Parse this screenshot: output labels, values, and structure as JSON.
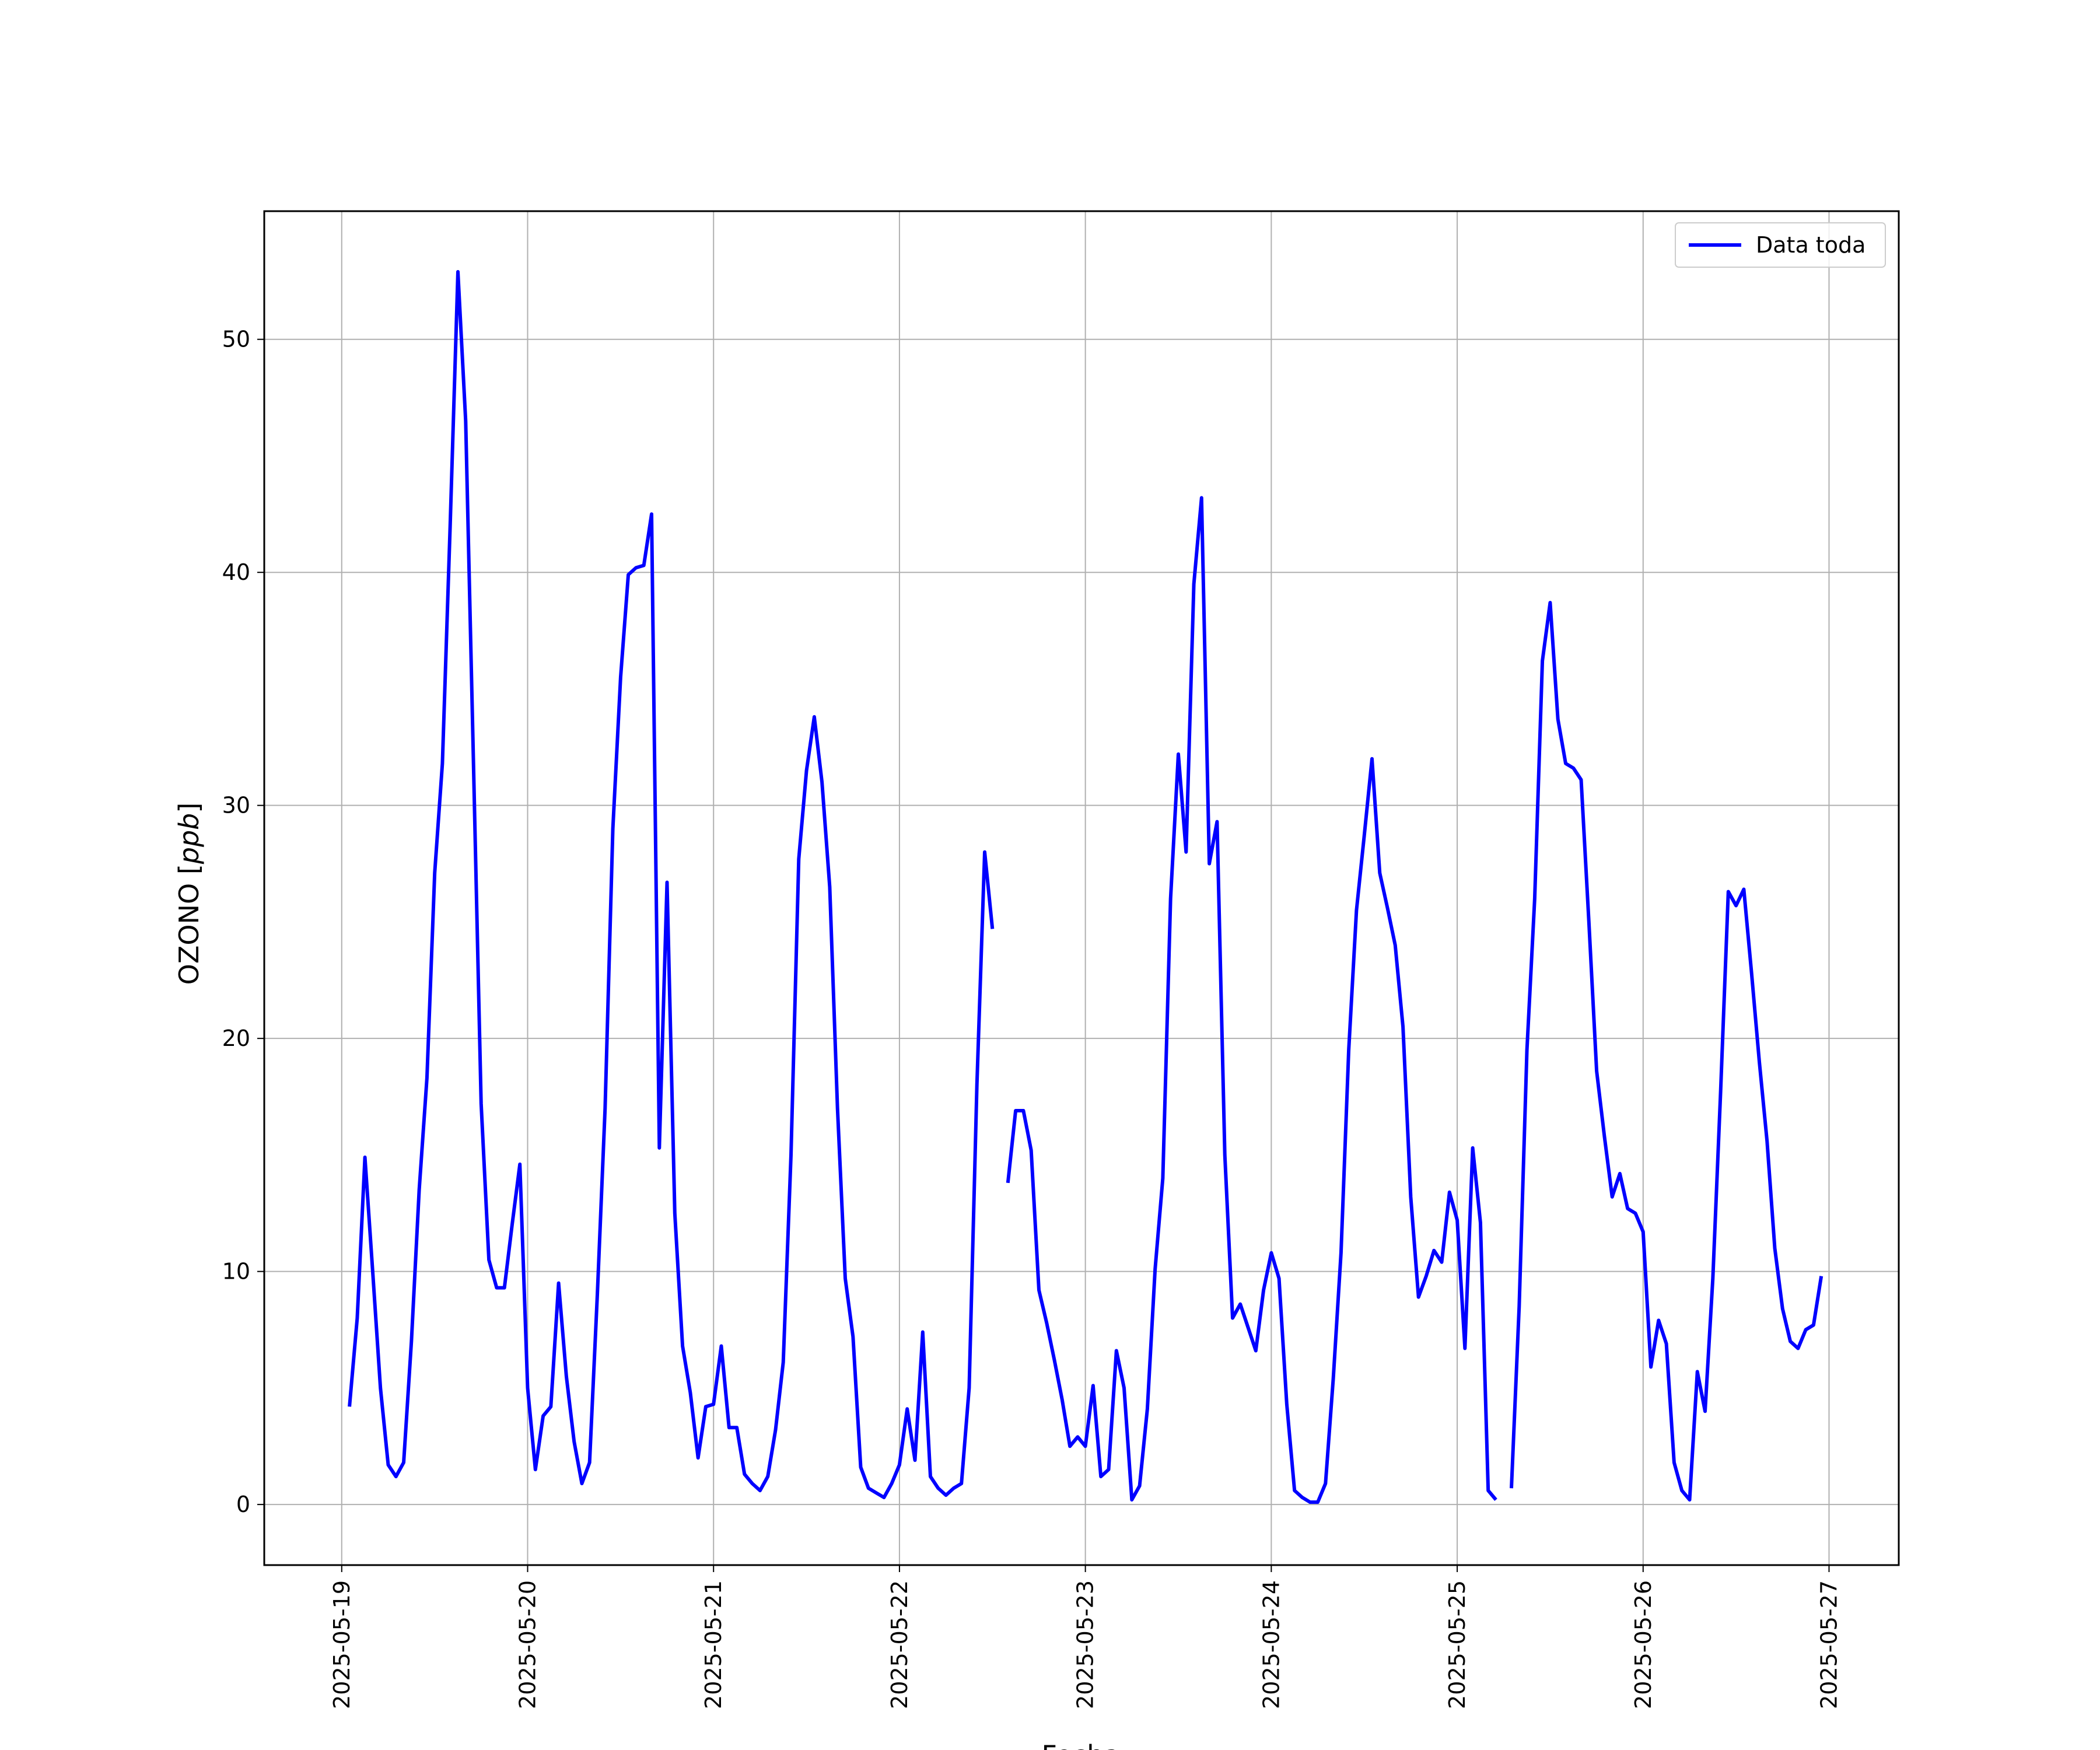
{
  "chart_data": {
    "type": "line",
    "xlabel": "Fecha",
    "ylabel": "OZONO [ppb]",
    "ylabel_plain": "OZONO [",
    "ylabel_italic": "ppb",
    "ylabel_close": "]",
    "xlim": [
      "2025-05-18T14:00",
      "2025-05-27T09:00"
    ],
    "ylim": [
      -2.6,
      55.5
    ],
    "yticks": [
      0,
      10,
      20,
      30,
      40,
      50
    ],
    "xticks": [
      "2025-05-19",
      "2025-05-20",
      "2025-05-21",
      "2025-05-22",
      "2025-05-23",
      "2025-05-24",
      "2025-05-25",
      "2025-05-26",
      "2025-05-27"
    ],
    "grid": true,
    "legend_position": "top-right",
    "series": [
      {
        "name": "Data toda",
        "color": "#0000ff",
        "segments": [
          [
            [
              "2025-05-19T01:00",
              4.2
            ],
            [
              "2025-05-19T02:00",
              8.0
            ],
            [
              "2025-05-19T03:00",
              14.9
            ],
            [
              "2025-05-19T04:00",
              10.0
            ],
            [
              "2025-05-19T05:00",
              5.0
            ],
            [
              "2025-05-19T06:00",
              1.7
            ],
            [
              "2025-05-19T07:00",
              1.2
            ],
            [
              "2025-05-19T08:00",
              1.8
            ],
            [
              "2025-05-19T09:00",
              7.0
            ],
            [
              "2025-05-19T10:00",
              13.5
            ],
            [
              "2025-05-19T11:00",
              18.3
            ],
            [
              "2025-05-19T12:00",
              27.1
            ],
            [
              "2025-05-19T13:00",
              31.8
            ],
            [
              "2025-05-19T14:00",
              42.0
            ],
            [
              "2025-05-19T15:00",
              52.9
            ],
            [
              "2025-05-19T16:00",
              46.5
            ],
            [
              "2025-05-19T17:00",
              32.0
            ],
            [
              "2025-05-19T18:00",
              17.2
            ],
            [
              "2025-05-19T19:00",
              10.5
            ],
            [
              "2025-05-19T20:00",
              9.3
            ],
            [
              "2025-05-19T21:00",
              9.3
            ],
            [
              "2025-05-19T22:00",
              12.0
            ],
            [
              "2025-05-19T23:00",
              14.6
            ],
            [
              "2025-05-20T00:00",
              5.0
            ],
            [
              "2025-05-20T01:00",
              1.5
            ],
            [
              "2025-05-20T02:00",
              3.8
            ],
            [
              "2025-05-20T03:00",
              4.2
            ],
            [
              "2025-05-20T04:00",
              9.5
            ],
            [
              "2025-05-20T05:00",
              5.5
            ],
            [
              "2025-05-20T06:00",
              2.7
            ],
            [
              "2025-05-20T07:00",
              0.9
            ],
            [
              "2025-05-20T08:00",
              1.8
            ],
            [
              "2025-05-20T09:00",
              9.0
            ],
            [
              "2025-05-20T10:00",
              17.0
            ],
            [
              "2025-05-20T11:00",
              29.0
            ],
            [
              "2025-05-20T12:00",
              35.5
            ],
            [
              "2025-05-20T13:00",
              39.9
            ],
            [
              "2025-05-20T14:00",
              40.2
            ],
            [
              "2025-05-20T15:00",
              40.3
            ],
            [
              "2025-05-20T16:00",
              42.5
            ],
            [
              "2025-05-20T17:00",
              15.3
            ],
            [
              "2025-05-20T18:00",
              26.7
            ],
            [
              "2025-05-20T19:00",
              12.5
            ],
            [
              "2025-05-20T20:00",
              6.8
            ],
            [
              "2025-05-20T21:00",
              4.8
            ],
            [
              "2025-05-20T22:00",
              2.0
            ],
            [
              "2025-05-20T23:00",
              4.2
            ],
            [
              "2025-05-21T00:00",
              4.3
            ],
            [
              "2025-05-21T01:00",
              6.8
            ],
            [
              "2025-05-21T02:00",
              3.3
            ],
            [
              "2025-05-21T03:00",
              3.3
            ],
            [
              "2025-05-21T04:00",
              1.3
            ],
            [
              "2025-05-21T05:00",
              0.9
            ],
            [
              "2025-05-21T06:00",
              0.6
            ],
            [
              "2025-05-21T07:00",
              1.2
            ],
            [
              "2025-05-21T08:00",
              3.2
            ],
            [
              "2025-05-21T09:00",
              6.1
            ],
            [
              "2025-05-21T10:00",
              15.0
            ],
            [
              "2025-05-21T11:00",
              27.7
            ],
            [
              "2025-05-21T12:00",
              31.5
            ],
            [
              "2025-05-21T13:00",
              33.8
            ],
            [
              "2025-05-21T14:00",
              31.0
            ],
            [
              "2025-05-21T15:00",
              26.5
            ],
            [
              "2025-05-21T16:00",
              17.0
            ],
            [
              "2025-05-21T17:00",
              9.7
            ],
            [
              "2025-05-21T18:00",
              7.2
            ],
            [
              "2025-05-21T19:00",
              1.6
            ],
            [
              "2025-05-21T20:00",
              0.7
            ],
            [
              "2025-05-21T21:00",
              0.5
            ],
            [
              "2025-05-21T22:00",
              0.3
            ],
            [
              "2025-05-21T23:00",
              0.9
            ],
            [
              "2025-05-22T00:00",
              1.7
            ],
            [
              "2025-05-22T01:00",
              4.1
            ],
            [
              "2025-05-22T02:00",
              1.9
            ],
            [
              "2025-05-22T03:00",
              7.4
            ],
            [
              "2025-05-22T04:00",
              1.2
            ],
            [
              "2025-05-22T05:00",
              0.7
            ],
            [
              "2025-05-22T06:00",
              0.4
            ],
            [
              "2025-05-22T07:00",
              0.7
            ],
            [
              "2025-05-22T08:00",
              0.9
            ],
            [
              "2025-05-22T09:00",
              5.0
            ],
            [
              "2025-05-22T10:00",
              18.0
            ],
            [
              "2025-05-22T11:00",
              28.0
            ],
            [
              "2025-05-22T12:00",
              24.7
            ]
          ],
          [
            [
              "2025-05-22T14:00",
              13.8
            ],
            [
              "2025-05-22T15:00",
              16.9
            ],
            [
              "2025-05-22T16:00",
              16.9
            ],
            [
              "2025-05-22T17:00",
              15.2
            ],
            [
              "2025-05-22T18:00",
              9.2
            ],
            [
              "2025-05-22T19:00",
              7.8
            ],
            [
              "2025-05-22T20:00",
              6.2
            ],
            [
              "2025-05-22T21:00",
              4.5
            ],
            [
              "2025-05-22T22:00",
              2.5
            ],
            [
              "2025-05-22T23:00",
              2.9
            ],
            [
              "2025-05-23T00:00",
              2.5
            ],
            [
              "2025-05-23T01:00",
              5.1
            ],
            [
              "2025-05-23T02:00",
              1.2
            ],
            [
              "2025-05-23T03:00",
              1.5
            ],
            [
              "2025-05-23T04:00",
              6.6
            ],
            [
              "2025-05-23T05:00",
              5.0
            ],
            [
              "2025-05-23T06:00",
              0.2
            ],
            [
              "2025-05-23T07:00",
              0.8
            ],
            [
              "2025-05-23T08:00",
              4.1
            ],
            [
              "2025-05-23T09:00",
              10.1
            ],
            [
              "2025-05-23T10:00",
              14.0
            ],
            [
              "2025-05-23T11:00",
              26.0
            ],
            [
              "2025-05-23T12:00",
              32.2
            ],
            [
              "2025-05-23T13:00",
              28.0
            ],
            [
              "2025-05-23T14:00",
              39.5
            ],
            [
              "2025-05-23T15:00",
              43.2
            ],
            [
              "2025-05-23T16:00",
              27.5
            ],
            [
              "2025-05-23T17:00",
              29.3
            ],
            [
              "2025-05-23T18:00",
              15.0
            ],
            [
              "2025-05-23T19:00",
              8.0
            ],
            [
              "2025-05-23T20:00",
              8.6
            ],
            [
              "2025-05-23T21:00",
              7.6
            ],
            [
              "2025-05-23T22:00",
              6.6
            ],
            [
              "2025-05-23T23:00",
              9.2
            ],
            [
              "2025-05-24T00:00",
              10.8
            ],
            [
              "2025-05-24T01:00",
              9.7
            ],
            [
              "2025-05-24T02:00",
              4.3
            ],
            [
              "2025-05-24T03:00",
              0.6
            ],
            [
              "2025-05-24T04:00",
              0.3
            ],
            [
              "2025-05-24T05:00",
              0.1
            ],
            [
              "2025-05-24T06:00",
              0.1
            ],
            [
              "2025-05-24T07:00",
              0.9
            ],
            [
              "2025-05-24T08:00",
              5.4
            ],
            [
              "2025-05-24T09:00",
              10.8
            ],
            [
              "2025-05-24T10:00",
              19.5
            ],
            [
              "2025-05-24T11:00",
              25.5
            ],
            [
              "2025-05-24T12:00",
              28.7
            ],
            [
              "2025-05-24T13:00",
              32.0
            ],
            [
              "2025-05-24T14:00",
              27.1
            ],
            [
              "2025-05-24T15:00",
              25.6
            ],
            [
              "2025-05-24T16:00",
              24.0
            ],
            [
              "2025-05-24T17:00",
              20.5
            ],
            [
              "2025-05-24T18:00",
              13.2
            ],
            [
              "2025-05-24T19:00",
              8.9
            ],
            [
              "2025-05-24T20:00",
              9.8
            ],
            [
              "2025-05-24T21:00",
              10.9
            ],
            [
              "2025-05-24T22:00",
              10.4
            ],
            [
              "2025-05-24T23:00",
              13.4
            ],
            [
              "2025-05-25T00:00",
              12.2
            ],
            [
              "2025-05-25T01:00",
              6.7
            ],
            [
              "2025-05-25T02:00",
              15.3
            ],
            [
              "2025-05-25T03:00",
              12.1
            ],
            [
              "2025-05-25T04:00",
              0.6
            ],
            [
              "2025-05-25T05:00",
              0.2
            ]
          ],
          [
            [
              "2025-05-25T07:00",
              0.7
            ],
            [
              "2025-05-25T08:00",
              8.5
            ],
            [
              "2025-05-25T09:00",
              19.5
            ],
            [
              "2025-05-25T10:00",
              26.0
            ],
            [
              "2025-05-25T11:00",
              36.2
            ],
            [
              "2025-05-25T12:00",
              38.7
            ],
            [
              "2025-05-25T13:00",
              33.7
            ],
            [
              "2025-05-25T14:00",
              31.8
            ],
            [
              "2025-05-25T15:00",
              31.6
            ],
            [
              "2025-05-25T16:00",
              31.1
            ],
            [
              "2025-05-25T17:00",
              25.0
            ],
            [
              "2025-05-25T18:00",
              18.6
            ],
            [
              "2025-05-25T19:00",
              15.8
            ],
            [
              "2025-05-25T20:00",
              13.2
            ],
            [
              "2025-05-25T21:00",
              14.2
            ],
            [
              "2025-05-25T22:00",
              12.7
            ],
            [
              "2025-05-25T23:00",
              12.5
            ],
            [
              "2025-05-26T00:00",
              11.7
            ],
            [
              "2025-05-26T01:00",
              5.9
            ],
            [
              "2025-05-26T02:00",
              7.9
            ],
            [
              "2025-05-26T03:00",
              6.9
            ],
            [
              "2025-05-26T04:00",
              1.8
            ],
            [
              "2025-05-26T05:00",
              0.6
            ],
            [
              "2025-05-26T06:00",
              0.2
            ],
            [
              "2025-05-26T07:00",
              5.7
            ],
            [
              "2025-05-26T08:00",
              4.0
            ],
            [
              "2025-05-26T09:00",
              9.7
            ],
            [
              "2025-05-26T10:00",
              17.7
            ],
            [
              "2025-05-26T11:00",
              26.3
            ],
            [
              "2025-05-26T12:00",
              25.7
            ],
            [
              "2025-05-26T13:00",
              26.4
            ],
            [
              "2025-05-26T14:00",
              22.8
            ],
            [
              "2025-05-26T15:00",
              19.0
            ],
            [
              "2025-05-26T16:00",
              15.6
            ],
            [
              "2025-05-26T17:00",
              11.0
            ],
            [
              "2025-05-26T18:00",
              8.4
            ],
            [
              "2025-05-26T19:00",
              7.0
            ],
            [
              "2025-05-26T20:00",
              6.7
            ],
            [
              "2025-05-26T21:00",
              7.5
            ],
            [
              "2025-05-26T22:00",
              7.7
            ],
            [
              "2025-05-26T23:00",
              9.8
            ]
          ]
        ]
      }
    ]
  }
}
